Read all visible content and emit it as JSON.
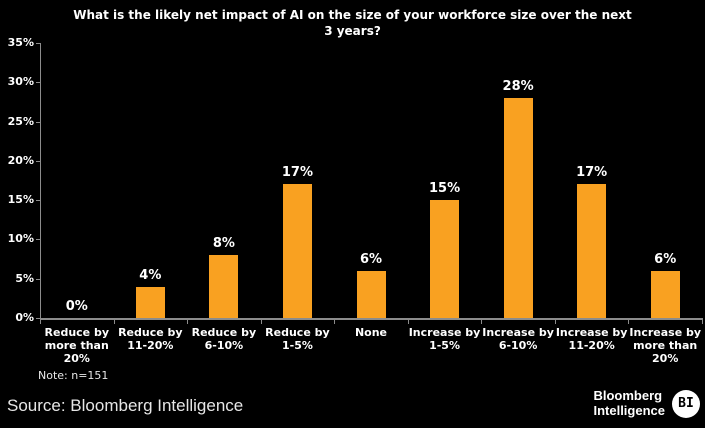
{
  "header": {
    "title_line1": "What is the likely net impact of AI on the size of your workforce size over the next",
    "title_line2": "3 years?"
  },
  "note": "Note: n=151",
  "source": "Source: Bloomberg Intelligence",
  "brand": {
    "line1": "Bloomberg",
    "line2": "Intelligence",
    "badge": "BI"
  },
  "colors": {
    "background": "#000000",
    "bar": "#F9A121",
    "axis": "#8C8C8C",
    "text": "#FFFFFF"
  },
  "chart_data": {
    "type": "bar",
    "title": "What is the likely net impact of AI on the size of your workforce size over the next 3 years?",
    "categories": [
      "Reduce by more than 20%",
      "Reduce by 11-20%",
      "Reduce by 6-10%",
      "Reduce by 1-5%",
      "None",
      "Increase by 1-5%",
      "Increase by 6-10%",
      "Increase by 11-20%",
      "Increase by more than 20%"
    ],
    "values": [
      0,
      4,
      8,
      17,
      6,
      15,
      28,
      17,
      6
    ],
    "value_labels": [
      "0%",
      "4%",
      "8%",
      "17%",
      "6%",
      "15%",
      "28%",
      "17%",
      "6%"
    ],
    "xlabel": "",
    "ylabel": "",
    "ylim": [
      0,
      35
    ],
    "ytick_step": 5,
    "ytick_labels": [
      "0%",
      "5%",
      "10%",
      "15%",
      "20%",
      "25%",
      "30%",
      "35%"
    ],
    "grid": false,
    "legend": false,
    "annotation": "Note: n=151",
    "source": "Source: Bloomberg Intelligence"
  }
}
